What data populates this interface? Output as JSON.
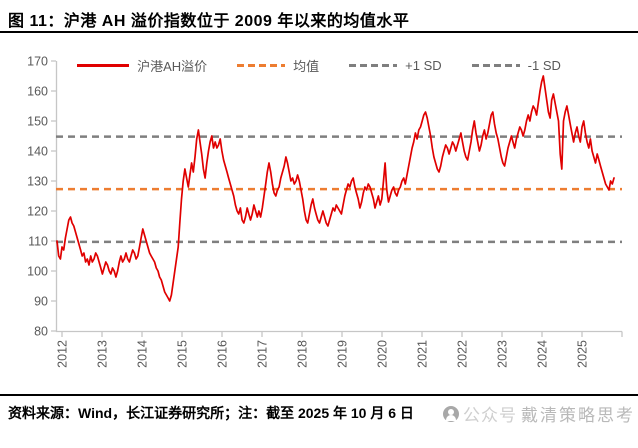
{
  "figure": {
    "title": "图 11：沪港 AH 溢价指数位于 2009 年以来的均值水平",
    "source_note": "资料来源：Wind，长江证券研究所；注：截至 2025 年 10 月 6 日",
    "watermark": {
      "icon": "wechat-official-account-icon",
      "prefix": "公众号",
      "name": "戴清策略思考"
    }
  },
  "colors": {
    "series_red": "#e00000",
    "mean_orange": "#ed7d31",
    "sd_gray": "#7f7f7f",
    "axis_gray": "#c6c6c6",
    "tick_text": "#595959"
  },
  "chart_data": {
    "type": "line",
    "title": "沪港AH溢价指数位于2009年以来的均值水平",
    "xlabel": "",
    "ylabel": "",
    "ylim": [
      80,
      170
    ],
    "y_ticks": [
      80,
      90,
      100,
      110,
      120,
      130,
      140,
      150,
      160,
      170
    ],
    "x_ticks": [
      "2012",
      "2013",
      "2014",
      "2015",
      "2016",
      "2017",
      "2018",
      "2019",
      "2020",
      "2021",
      "2022",
      "2023",
      "2024",
      "2025"
    ],
    "x_range": "2012-01 to 2025-10",
    "points_per_year": 24,
    "grid": false,
    "legend_position": "top",
    "legend": [
      {
        "label": "沪港AH溢价",
        "color": "#e00000",
        "line": "solid"
      },
      {
        "label": "均值",
        "color": "#ed7d31",
        "line": "dashed"
      },
      {
        "label": "+1 SD",
        "color": "#7f7f7f",
        "line": "dashed"
      },
      {
        "label": "-1 SD",
        "color": "#7f7f7f",
        "line": "dashed"
      }
    ],
    "reference_lines": [
      {
        "name": "均值",
        "value": 127.3,
        "color": "#ed7d31",
        "style": "dashed"
      },
      {
        "name": "+1 SD",
        "value": 144.8,
        "color": "#7f7f7f",
        "style": "dashed"
      },
      {
        "name": "-1 SD",
        "value": 109.7,
        "color": "#7f7f7f",
        "style": "dashed"
      }
    ],
    "series": [
      {
        "name": "沪港AH溢价",
        "color": "#e00000",
        "style": "solid",
        "values": [
          110,
          105,
          104,
          108,
          107,
          111,
          114,
          117,
          118,
          116,
          115,
          113,
          111,
          109,
          107,
          105,
          106,
          103,
          104,
          102,
          105,
          103,
          104,
          106,
          105,
          103,
          101,
          99,
          101,
          103,
          102,
          100,
          99,
          101,
          100,
          98,
          100,
          103,
          105,
          103,
          104,
          106,
          104,
          103,
          105,
          107,
          106,
          104,
          105,
          108,
          111,
          114,
          112,
          110,
          108,
          106,
          105,
          104,
          103,
          101,
          100,
          98,
          97,
          95,
          93,
          92,
          91,
          90,
          92,
          96,
          100,
          104,
          108,
          116,
          124,
          130,
          134,
          131,
          128,
          132,
          136,
          133,
          138,
          144,
          147,
          143,
          139,
          134,
          131,
          136,
          140,
          143,
          145,
          141,
          143,
          141,
          142,
          144,
          140,
          137,
          135,
          133,
          131,
          129,
          127,
          125,
          122,
          120,
          119,
          121,
          117,
          116,
          118,
          121,
          119,
          117,
          119,
          122,
          120,
          118,
          120,
          118,
          121,
          125,
          129,
          133,
          136,
          133,
          129,
          126,
          125,
          127,
          128,
          131,
          133,
          135,
          138,
          136,
          133,
          130,
          131,
          129,
          130,
          132,
          130,
          127,
          124,
          120,
          117,
          116,
          119,
          122,
          124,
          121,
          119,
          117,
          116,
          118,
          120,
          118,
          116,
          115,
          117,
          119,
          121,
          120,
          122,
          121,
          120,
          119,
          122,
          125,
          127,
          129,
          128,
          130,
          131,
          128,
          126,
          124,
          121,
          123,
          126,
          128,
          127,
          129,
          128,
          126,
          124,
          121,
          123,
          125,
          122,
          124,
          130,
          136,
          127,
          123,
          125,
          127,
          128,
          126,
          125,
          127,
          128,
          130,
          131,
          129,
          132,
          135,
          138,
          141,
          143,
          146,
          144,
          147,
          148,
          150,
          152,
          153,
          151,
          148,
          145,
          141,
          138,
          136,
          134,
          133,
          135,
          138,
          140,
          142,
          141,
          139,
          141,
          143,
          142,
          140,
          142,
          144,
          146,
          143,
          140,
          138,
          137,
          140,
          143,
          147,
          150,
          146,
          143,
          140,
          142,
          145,
          147,
          144,
          146,
          149,
          152,
          153,
          149,
          146,
          144,
          141,
          138,
          136,
          135,
          138,
          141,
          143,
          145,
          143,
          141,
          144,
          146,
          148,
          147,
          145,
          147,
          150,
          152,
          150,
          153,
          155,
          154,
          152,
          156,
          160,
          163,
          165,
          161,
          157,
          153,
          151,
          157,
          159,
          156,
          153,
          150,
          139,
          134,
          150,
          153,
          155,
          152,
          149,
          146,
          143,
          146,
          148,
          145,
          143,
          148,
          150,
          146,
          143,
          141,
          144,
          140,
          138,
          136,
          139,
          137,
          135,
          133,
          131,
          129,
          128,
          127,
          130,
          129,
          131
        ]
      }
    ]
  }
}
